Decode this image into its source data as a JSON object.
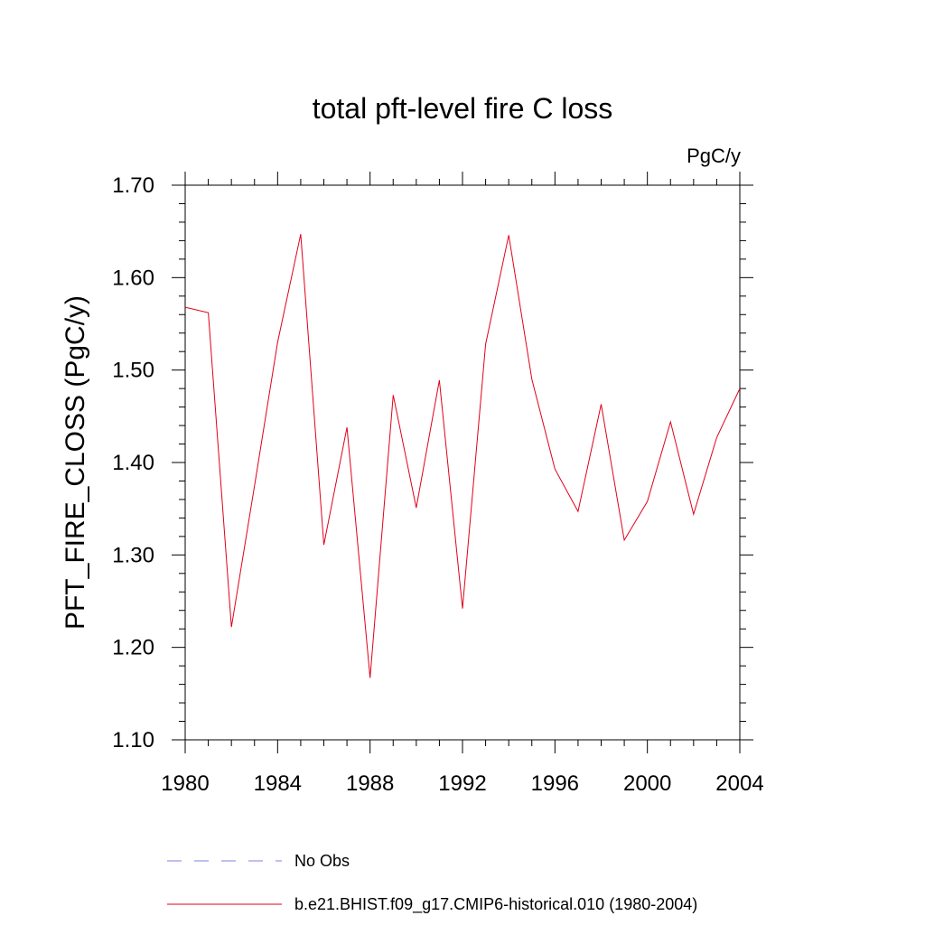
{
  "chart_data": {
    "type": "line",
    "title": "total pft-level fire C loss",
    "units_label": "PgC/y",
    "xlabel": "",
    "ylabel": "PFT_FIRE_CLOSS  (PgC/y)",
    "xlim": [
      1980,
      2004
    ],
    "ylim": [
      1.1,
      1.7
    ],
    "x_ticks": [
      1980,
      1984,
      1988,
      1992,
      1996,
      2000,
      2004
    ],
    "x_tick_labels": [
      "1980",
      "1984",
      "1988",
      "1992",
      "1996",
      "2000",
      "2004"
    ],
    "y_ticks": [
      1.1,
      1.2,
      1.3,
      1.4,
      1.5,
      1.6,
      1.7
    ],
    "y_tick_labels": [
      "1.10",
      "1.20",
      "1.30",
      "1.40",
      "1.50",
      "1.60",
      "1.70"
    ],
    "grid": false,
    "legend_position": "bottom",
    "series": [
      {
        "name": "No Obs",
        "color": "#7f7fdf",
        "dash": "dashed",
        "x": [],
        "y": []
      },
      {
        "name": "b.e21.BHIST.f09_g17.CMIP6-historical.010 (1980-2004)",
        "color": "#e0001a",
        "dash": "solid",
        "x": [
          1980,
          1981,
          1982,
          1983,
          1984,
          1985,
          1986,
          1987,
          1988,
          1989,
          1990,
          1991,
          1992,
          1993,
          1994,
          1995,
          1996,
          1997,
          1998,
          1999,
          2000,
          2001,
          2002,
          2003,
          2004
        ],
        "y": [
          1.568,
          1.562,
          1.222,
          1.375,
          1.53,
          1.647,
          1.311,
          1.438,
          1.167,
          1.473,
          1.351,
          1.489,
          1.242,
          1.528,
          1.646,
          1.49,
          1.393,
          1.347,
          1.463,
          1.316,
          1.358,
          1.444,
          1.344,
          1.427,
          1.48
        ]
      }
    ]
  }
}
